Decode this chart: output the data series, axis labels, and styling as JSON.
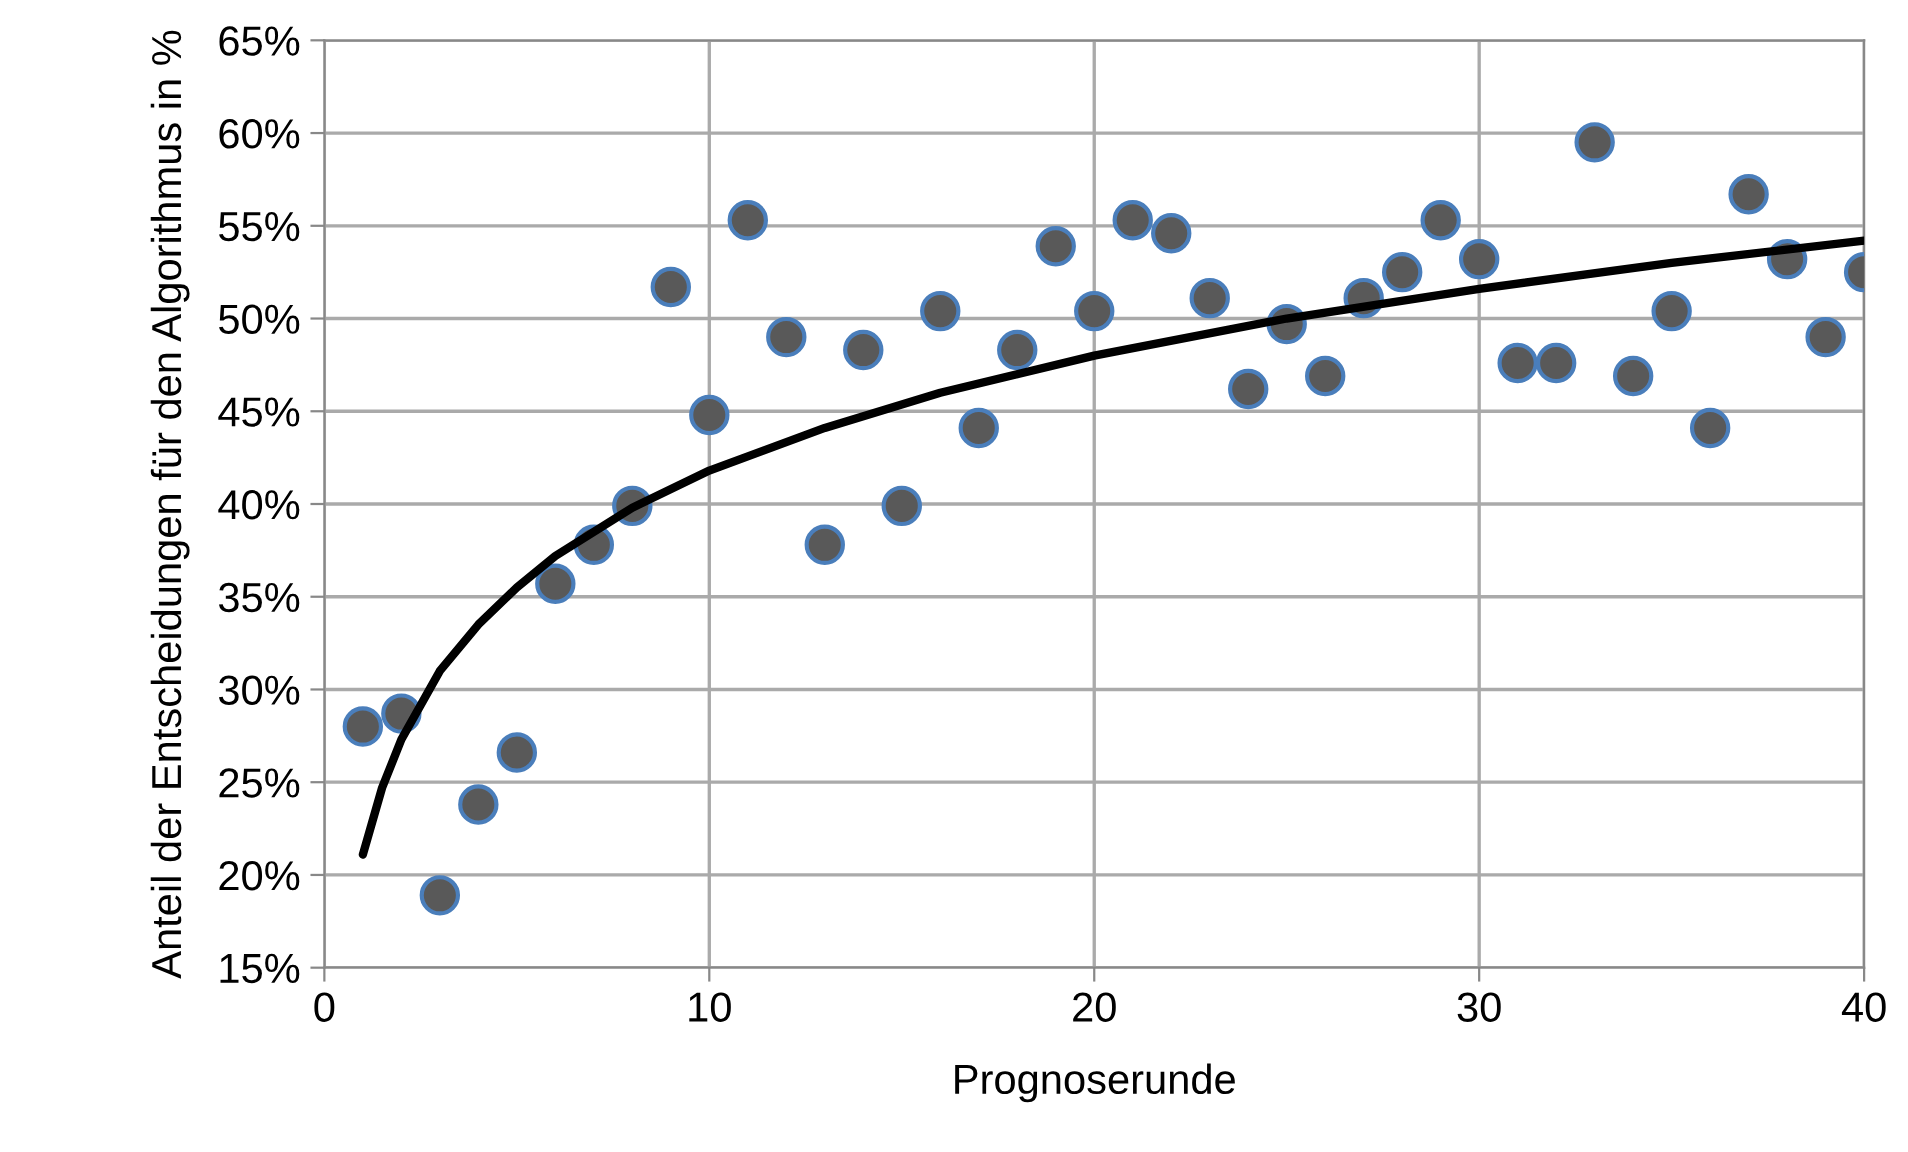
{
  "chart_data": {
    "type": "scatter",
    "xlabel": "Prognoserunde",
    "ylabel": "Anteil der Entscheidungen für den Algorithmus in %",
    "series": [
      {
        "color": "#595959",
        "marker": "circle",
        "x": [
          1,
          2,
          3,
          4,
          5,
          6,
          7,
          8,
          9,
          10,
          11,
          12,
          13,
          14,
          15,
          16,
          17,
          18,
          19,
          20,
          21,
          22,
          23,
          24,
          25,
          26,
          27,
          28,
          29,
          30,
          31,
          32,
          33,
          34,
          35,
          36,
          37,
          38,
          39,
          40
        ],
        "values": [
          28.0,
          28.7,
          18.9,
          23.8,
          26.6,
          35.7,
          37.8,
          39.9,
          51.7,
          44.8,
          55.3,
          49.0,
          37.8,
          48.3,
          39.9,
          50.4,
          44.1,
          48.3,
          53.9,
          50.4,
          55.3,
          54.6,
          51.1,
          46.2,
          49.7,
          46.9,
          51.1,
          52.5,
          55.3,
          53.2,
          47.6,
          47.6,
          59.5,
          46.9,
          50.4,
          44.1,
          56.7,
          53.2,
          49.0,
          52.5
        ]
      },
      {
        "type": "line",
        "color": "#000000",
        "marker": "none",
        "line_style": "solid",
        "x": [
          1,
          1.5,
          2,
          3,
          4,
          5,
          6,
          8,
          10,
          13,
          16,
          20,
          25,
          30,
          35,
          40
        ],
        "values": [
          21.1,
          24.7,
          27.3,
          31.0,
          33.5,
          35.5,
          37.2,
          39.8,
          41.8,
          44.1,
          46.0,
          48.0,
          50.0,
          51.6,
          53.0,
          54.2
        ]
      }
    ],
    "xlim": [
      0,
      40
    ],
    "xticks": [
      0,
      10,
      20,
      30,
      40
    ],
    "ylim": [
      15,
      65
    ],
    "yticks": [
      {
        "value": 15,
        "label": "15%"
      },
      {
        "value": 20,
        "label": "20%"
      },
      {
        "value": 25,
        "label": "25%"
      },
      {
        "value": 30,
        "label": "30%"
      },
      {
        "value": 35,
        "label": "35%"
      },
      {
        "value": 40,
        "label": "40%"
      },
      {
        "value": 45,
        "label": "45%"
      },
      {
        "value": 50,
        "label": "50%"
      },
      {
        "value": 55,
        "label": "55%"
      },
      {
        "value": 60,
        "label": "60%"
      },
      {
        "value": 65,
        "label": "65%"
      }
    ],
    "grid": true,
    "legend": false
  }
}
